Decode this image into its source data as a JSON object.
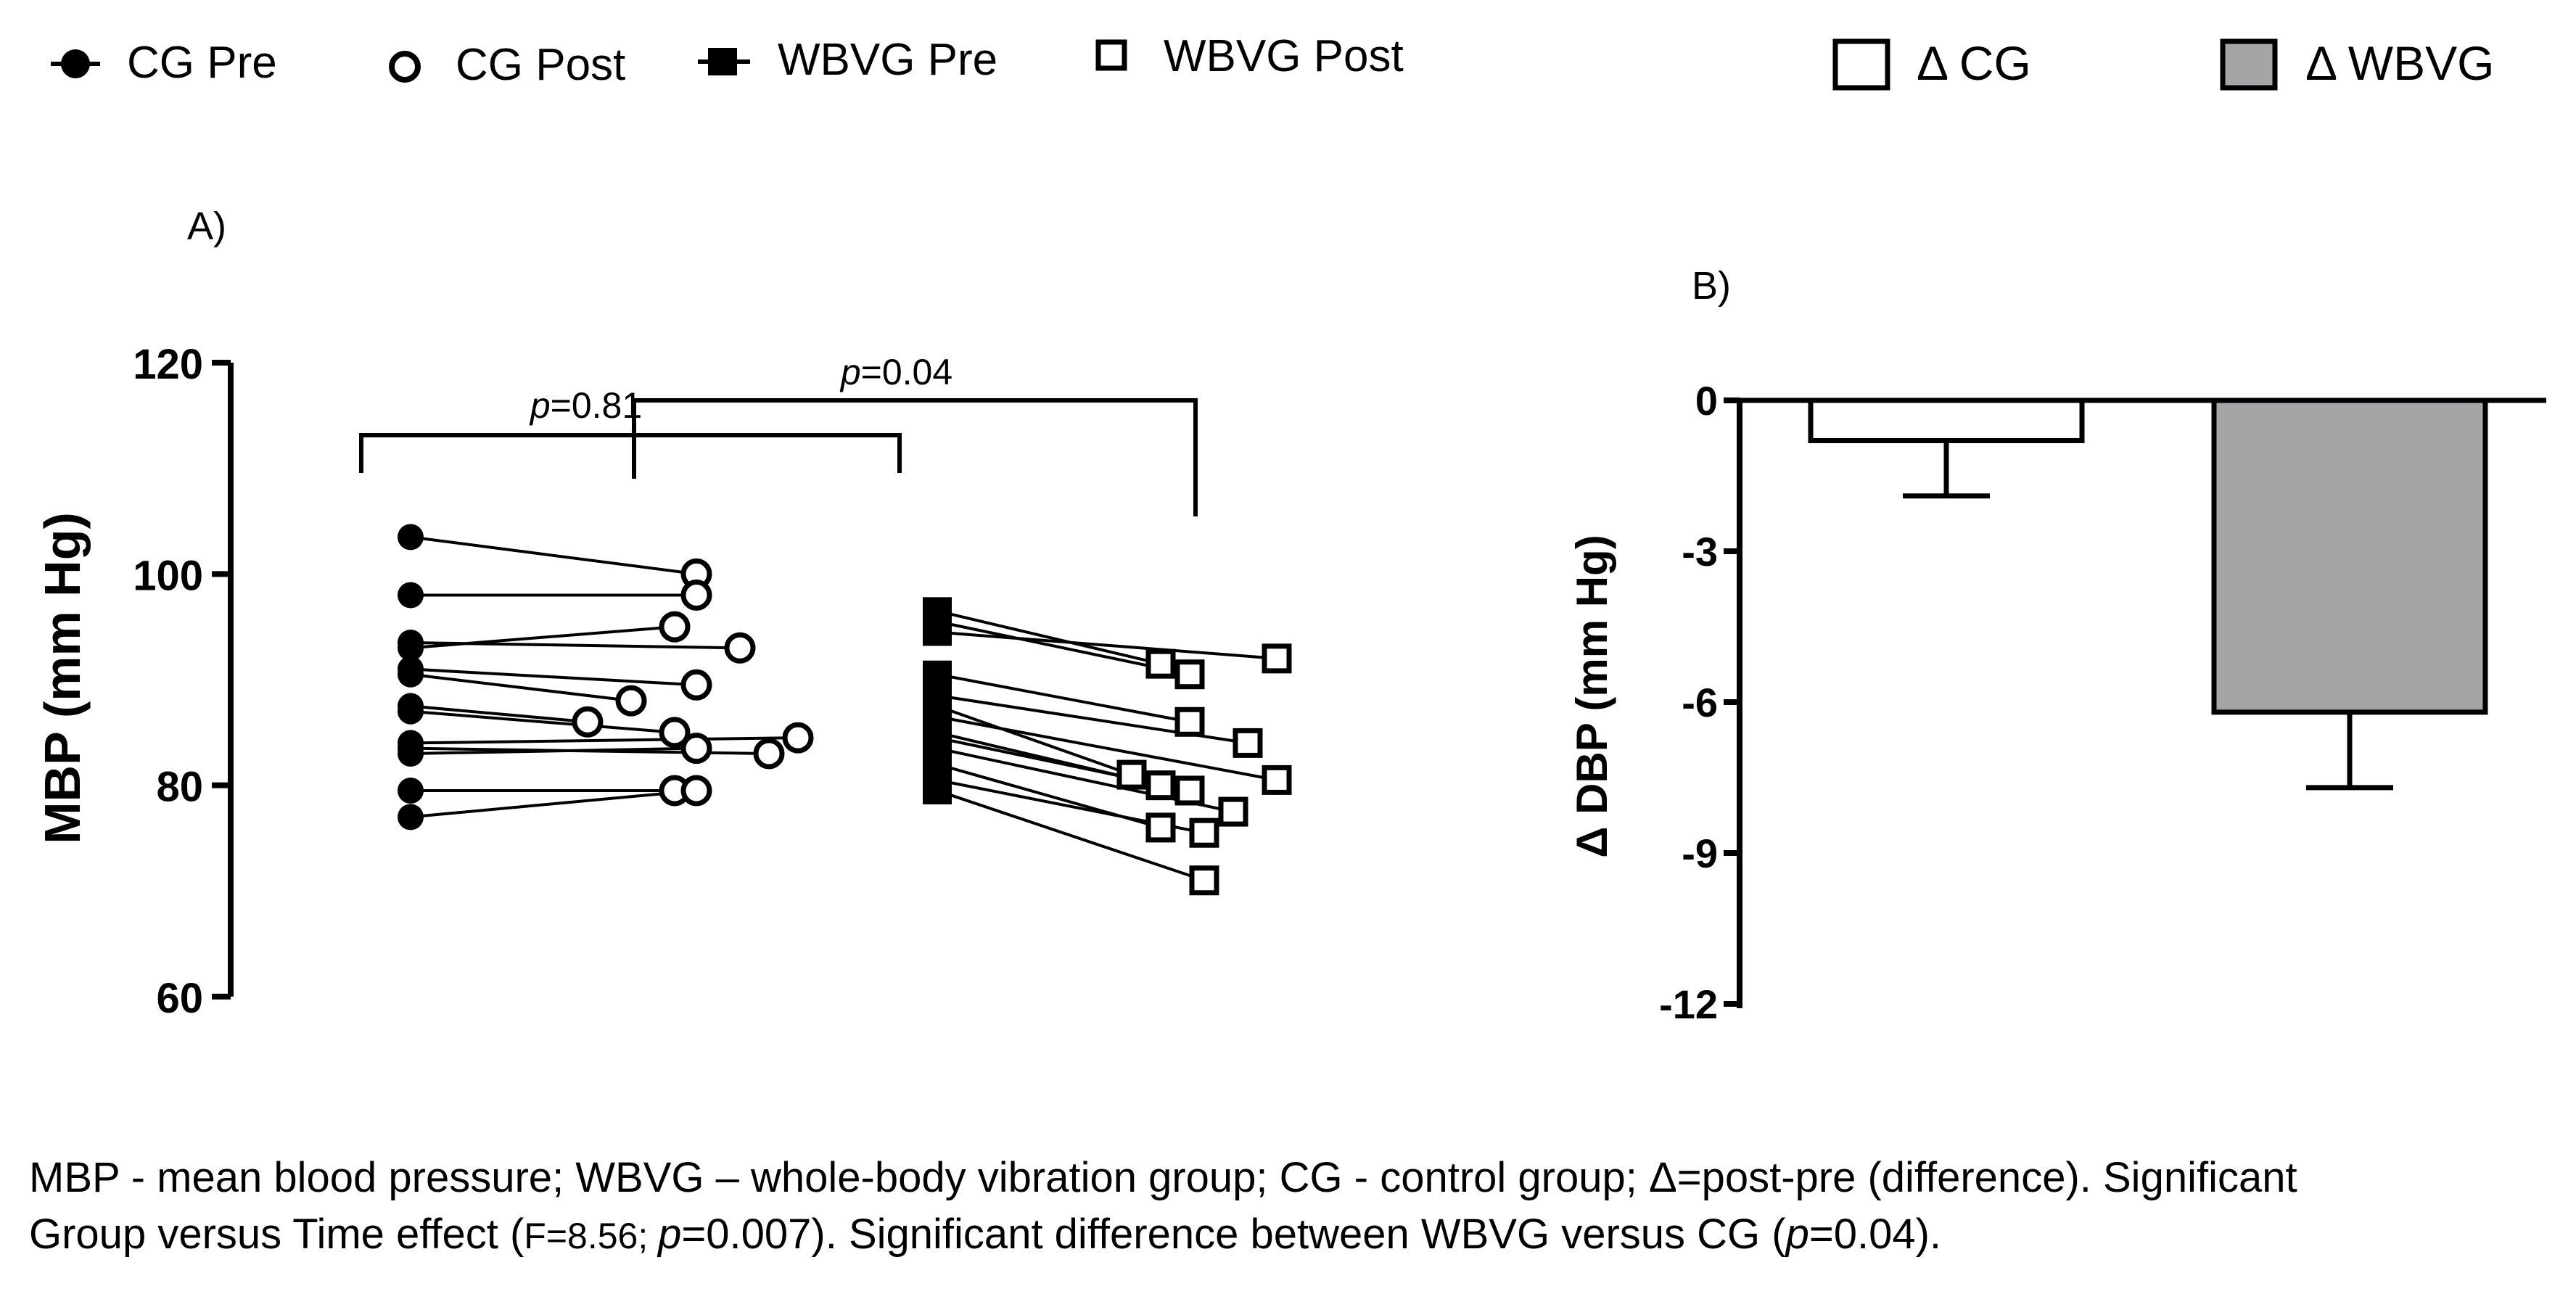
{
  "legend": {
    "items": [
      {
        "label": "CG Pre",
        "marker": "filled-circle"
      },
      {
        "label": "CG Post",
        "marker": "open-circle"
      },
      {
        "label": "WBVG Pre",
        "marker": "filled-square"
      },
      {
        "label": "WBVG Post",
        "marker": "open-square"
      },
      {
        "label": "Δ CG",
        "marker": "open-box"
      },
      {
        "label": "Δ WBVG",
        "marker": "gray-box"
      }
    ]
  },
  "colors": {
    "ink": "#000000",
    "bar_cg": "#ffffff",
    "bar_wbvg": "#a5a5a8"
  },
  "chart_data": [
    {
      "panel": "A)",
      "type": "scatter",
      "ylabel": "MBP (mm Hg)",
      "ylim": [
        60,
        120
      ],
      "yticks": [
        60,
        80,
        100,
        120
      ],
      "groups": [
        {
          "name": "CG",
          "pre": [
            103.5,
            98,
            93.5,
            93,
            91,
            90.5,
            87.5,
            87,
            84,
            83.5,
            83,
            79.5,
            77
          ],
          "post": [
            100,
            98,
            93,
            95,
            89.5,
            88,
            86,
            85,
            84.5,
            83,
            83.5,
            79.5,
            79.5
          ]
        },
        {
          "name": "WBVG",
          "pre": [
            96.5,
            95.5,
            94.5,
            90.5,
            88.5,
            87.5,
            86.5,
            85,
            84.5,
            83.5,
            82,
            80.5,
            79.5
          ],
          "post": [
            91.5,
            90.5,
            92,
            86,
            84,
            81,
            80.5,
            80,
            79.5,
            77.5,
            76,
            75.5,
            71
          ]
        }
      ],
      "annotations": [
        {
          "p_label": "p",
          "value": "=0.81",
          "between": "CG Pre vs CG Post"
        },
        {
          "p_label": "p",
          "value": "=0.04",
          "between": "CG vs WBVG"
        }
      ]
    },
    {
      "panel": "B)",
      "type": "bar",
      "ylabel": "Δ DBP (mm Hg)",
      "ylim": [
        -12,
        0
      ],
      "yticks": [
        0,
        -3,
        -6,
        -9,
        -12
      ],
      "ytick_labels": [
        "0",
        "-3",
        "-6",
        "-9",
        "-12"
      ],
      "categories": [
        "Δ CG",
        "Δ WBVG"
      ],
      "values": [
        -0.8,
        -6.2
      ],
      "errors": [
        1.1,
        1.5
      ]
    }
  ],
  "caption": {
    "line1": "MBP - mean blood pressure; WBVG – whole-body vibration group; CG - control group; Δ=post-pre (difference). Significant",
    "line2_a": "Group versus Time effect (",
    "line2_b": "F=8.56; ",
    "line2_c": "p",
    "line2_d": "=0.007). Significant difference between WBVG versus CG (",
    "line2_e": "p",
    "line2_f": "=0.04)."
  }
}
